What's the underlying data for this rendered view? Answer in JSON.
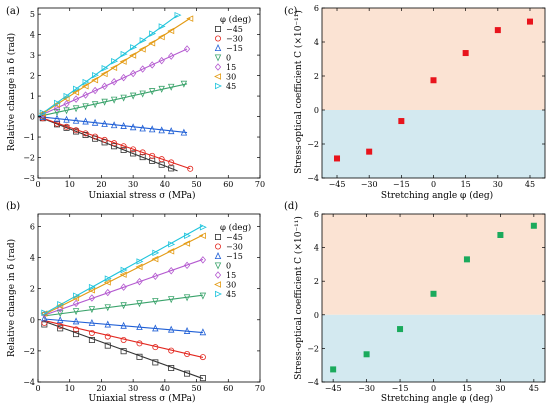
{
  "panels": [
    {
      "id": "a",
      "panel_label": "(a)",
      "xlabel": "Uniaxial stress σ (MPa)",
      "ylabel": "Relative change in δ (rad)"
    },
    {
      "id": "b",
      "panel_label": "(b)",
      "xlabel": "Uniaxial stress σ (MPa)",
      "ylabel": "Relative change in δ (rad)"
    },
    {
      "id": "c",
      "panel_label": "(c)",
      "xlabel": "Stretching angle φ (deg)",
      "ylabel": "Stress-optical coefficient C (×10⁻¹¹)"
    },
    {
      "id": "d",
      "panel_label": "(d)",
      "xlabel": "Stretching angle φ (deg)",
      "ylabel": "Stress-optical coefficient C (×10⁻¹¹)"
    }
  ],
  "legend_title": "φ (deg)",
  "colors": {
    "phi_-45": "#333333",
    "phi_-30": "#e2271f",
    "phi_-15": "#1f5fd6",
    "phi_0": "#3aa36b",
    "phi_15": "#b45ad0",
    "phi_30": "#e39a12",
    "phi_45": "#1ec4dc",
    "positive_region": "#fbe3d3",
    "negative_region": "#d3e9f0",
    "marker_c": "#e8141c",
    "marker_d": "#1aaa5c"
  },
  "chart_data": [
    {
      "panel": "a",
      "type": "scatter",
      "xlabel": "Uniaxial stress σ (MPa)",
      "ylabel": "Relative change in δ (rad)",
      "xlim": [
        0,
        70
      ],
      "ylim": [
        -3,
        5.3
      ],
      "xticks": [
        0,
        10,
        20,
        30,
        40,
        50,
        60,
        70
      ],
      "yticks": [
        -3,
        -2,
        -1,
        0,
        1,
        2,
        3,
        4,
        5
      ],
      "grid": false,
      "legend": "right",
      "legend_title": "φ (deg)",
      "series": [
        {
          "name": "-45",
          "marker": "square",
          "color": "#333333",
          "x": [
            1.5,
            6,
            9,
            12,
            15,
            18,
            21,
            24,
            27,
            30,
            33,
            36,
            39,
            42
          ],
          "y": [
            -0.08,
            -0.38,
            -0.55,
            -0.73,
            -0.9,
            -1.08,
            -1.26,
            -1.45,
            -1.63,
            -1.8,
            -1.98,
            -2.16,
            -2.35,
            -2.53
          ],
          "fit": [
            [
              0,
              0.0
            ],
            [
              44,
              -2.65
            ]
          ]
        },
        {
          "name": "-30",
          "marker": "circle",
          "color": "#e2271f",
          "x": [
            1.5,
            6,
            9,
            12,
            15,
            18,
            21,
            24,
            27,
            30,
            33,
            36,
            39,
            42,
            48
          ],
          "y": [
            -0.08,
            -0.35,
            -0.5,
            -0.67,
            -0.82,
            -0.98,
            -1.14,
            -1.3,
            -1.45,
            -1.6,
            -1.75,
            -1.92,
            -2.08,
            -2.24,
            -2.55
          ],
          "fit": [
            [
              0,
              0.0
            ],
            [
              48,
              -2.55
            ]
          ]
        },
        {
          "name": "-15",
          "marker": "triangle-up",
          "color": "#1f5fd6",
          "x": [
            1.5,
            6,
            9,
            12,
            15,
            18,
            21,
            24,
            27,
            30,
            33,
            36,
            39,
            42,
            46
          ],
          "y": [
            -0.02,
            -0.1,
            -0.15,
            -0.2,
            -0.24,
            -0.3,
            -0.36,
            -0.42,
            -0.46,
            -0.52,
            -0.58,
            -0.62,
            -0.67,
            -0.71,
            -0.78
          ],
          "fit": [
            [
              0,
              0.0
            ],
            [
              47,
              -0.78
            ]
          ]
        },
        {
          "name": "0",
          "marker": "triangle-down",
          "color": "#3aa36b",
          "x": [
            1.5,
            6,
            9,
            12,
            15,
            18,
            21,
            24,
            27,
            30,
            33,
            36,
            39,
            42,
            46
          ],
          "y": [
            0.05,
            0.22,
            0.3,
            0.4,
            0.5,
            0.6,
            0.72,
            0.82,
            0.92,
            1.02,
            1.12,
            1.24,
            1.35,
            1.45,
            1.6
          ],
          "fit": [
            [
              0,
              0.0
            ],
            [
              47,
              1.6
            ]
          ]
        },
        {
          "name": "15",
          "marker": "diamond",
          "color": "#b45ad0",
          "x": [
            1.5,
            6,
            9,
            12,
            15,
            18,
            21,
            24,
            27,
            30,
            33,
            36,
            39,
            42,
            47
          ],
          "y": [
            0.1,
            0.42,
            0.62,
            0.85,
            1.05,
            1.27,
            1.48,
            1.7,
            1.9,
            2.1,
            2.32,
            2.52,
            2.73,
            2.95,
            3.3
          ],
          "fit": [
            [
              0,
              0.0
            ],
            [
              47,
              3.3
            ]
          ]
        },
        {
          "name": "30",
          "marker": "triangle-left",
          "color": "#e39a12",
          "x": [
            1.5,
            6,
            9,
            12,
            15,
            18,
            21,
            24,
            27,
            30,
            33,
            36,
            39,
            42,
            48
          ],
          "y": [
            0.15,
            0.58,
            0.88,
            1.18,
            1.48,
            1.78,
            2.08,
            2.38,
            2.68,
            2.98,
            3.28,
            3.58,
            3.88,
            4.18,
            4.78
          ],
          "fit": [
            [
              0,
              0.0
            ],
            [
              48,
              4.8
            ]
          ]
        },
        {
          "name": "45",
          "marker": "triangle-right",
          "color": "#1ec4dc",
          "x": [
            1.5,
            6,
            9,
            12,
            15,
            18,
            21,
            24,
            27,
            30,
            33,
            36,
            39,
            44
          ],
          "y": [
            0.18,
            0.66,
            1.0,
            1.35,
            1.68,
            2.02,
            2.36,
            2.7,
            3.05,
            3.38,
            3.72,
            4.05,
            4.4,
            4.95
          ],
          "fit": [
            [
              0,
              0.0
            ],
            [
              44,
              4.95
            ]
          ]
        }
      ]
    },
    {
      "panel": "b",
      "type": "scatter",
      "xlabel": "Uniaxial stress σ (MPa)",
      "ylabel": "Relative change in δ (rad)",
      "xlim": [
        0,
        70
      ],
      "ylim": [
        -4,
        6.8
      ],
      "xticks": [
        0,
        10,
        20,
        30,
        40,
        50,
        60,
        70
      ],
      "yticks": [
        -4,
        -2,
        0,
        2,
        4,
        6
      ],
      "grid": false,
      "legend": "right",
      "legend_title": "φ (deg)",
      "series": [
        {
          "name": "-45",
          "marker": "square",
          "color": "#333333",
          "x": [
            2,
            7,
            12,
            17,
            22,
            27,
            32,
            37,
            42,
            47,
            52
          ],
          "y": [
            -0.3,
            -0.55,
            -0.92,
            -1.3,
            -1.66,
            -2.02,
            -2.38,
            -2.74,
            -3.1,
            -3.46,
            -3.75
          ],
          "fit": [
            [
              2,
              -0.1
            ],
            [
              52,
              -3.78
            ]
          ]
        },
        {
          "name": "-30",
          "marker": "circle",
          "color": "#e2271f",
          "x": [
            2,
            7,
            12,
            17,
            22,
            27,
            32,
            37,
            42,
            47,
            52
          ],
          "y": [
            -0.2,
            -0.4,
            -0.62,
            -0.85,
            -1.08,
            -1.3,
            -1.52,
            -1.76,
            -1.98,
            -2.2,
            -2.4
          ],
          "fit": [
            [
              2,
              -0.05
            ],
            [
              52,
              -2.42
            ]
          ]
        },
        {
          "name": "-15",
          "marker": "triangle-up",
          "color": "#1f5fd6",
          "x": [
            2,
            7,
            12,
            17,
            22,
            27,
            32,
            37,
            42,
            47,
            52
          ],
          "y": [
            0.1,
            -0.02,
            -0.1,
            -0.2,
            -0.3,
            -0.38,
            -0.46,
            -0.55,
            -0.63,
            -0.72,
            -0.8
          ],
          "fit": [
            [
              2,
              0.05
            ],
            [
              52,
              -0.82
            ]
          ]
        },
        {
          "name": "0",
          "marker": "triangle-down",
          "color": "#3aa36b",
          "x": [
            2,
            7,
            12,
            17,
            22,
            27,
            32,
            37,
            42,
            47,
            52
          ],
          "y": [
            0.3,
            0.42,
            0.55,
            0.68,
            0.8,
            0.93,
            1.06,
            1.2,
            1.32,
            1.44,
            1.55
          ],
          "fit": [
            [
              2,
              0.25
            ],
            [
              52,
              1.58
            ]
          ]
        },
        {
          "name": "15",
          "marker": "diamond",
          "color": "#b45ad0",
          "x": [
            2,
            7,
            12,
            17,
            22,
            27,
            32,
            37,
            42,
            47,
            52
          ],
          "y": [
            0.35,
            0.7,
            1.05,
            1.4,
            1.75,
            2.1,
            2.45,
            2.8,
            3.15,
            3.5,
            3.85
          ],
          "fit": [
            [
              2,
              0.3
            ],
            [
              52,
              3.88
            ]
          ]
        },
        {
          "name": "30",
          "marker": "triangle-left",
          "color": "#e39a12",
          "x": [
            2,
            7,
            12,
            17,
            22,
            27,
            32,
            37,
            42,
            47,
            52
          ],
          "y": [
            0.4,
            0.9,
            1.4,
            1.9,
            2.4,
            2.9,
            3.4,
            3.9,
            4.4,
            4.9,
            5.4
          ],
          "fit": [
            [
              2,
              0.35
            ],
            [
              52,
              5.45
            ]
          ]
        },
        {
          "name": "45",
          "marker": "triangle-right",
          "color": "#1ec4dc",
          "x": [
            2,
            7,
            12,
            17,
            22,
            27,
            32,
            37,
            42,
            47,
            52
          ],
          "y": [
            0.45,
            1.0,
            1.55,
            2.1,
            2.65,
            3.2,
            3.75,
            4.3,
            4.85,
            5.4,
            5.95
          ],
          "fit": [
            [
              2,
              0.4
            ],
            [
              52,
              6.05
            ]
          ]
        }
      ]
    },
    {
      "panel": "c",
      "type": "scatter",
      "xlabel": "Stretching angle φ (deg)",
      "ylabel": "Stress-optical coefficient C (×10⁻¹¹)",
      "xlim": [
        -52,
        52
      ],
      "ylim": [
        -4,
        6
      ],
      "xticks": [
        -45,
        -30,
        -15,
        0,
        15,
        30,
        45
      ],
      "yticks": [
        -4,
        -2,
        0,
        2,
        4,
        6
      ],
      "grid": false,
      "shaded_regions": [
        {
          "y": [
            0,
            6
          ],
          "color": "#fbe3d3"
        },
        {
          "y": [
            -4,
            0
          ],
          "color": "#d3e9f0"
        }
      ],
      "series": [
        {
          "marker": "square",
          "color": "#e8141c",
          "x": [
            -45,
            -30,
            -15,
            0,
            15,
            30,
            45
          ],
          "y": [
            -2.85,
            -2.45,
            -0.65,
            1.75,
            3.35,
            4.7,
            5.2
          ]
        }
      ]
    },
    {
      "panel": "d",
      "type": "scatter",
      "xlabel": "Stretching angle φ (deg)",
      "ylabel": "Stress-optical coefficient C (×10⁻¹¹)",
      "xlim": [
        -50,
        50
      ],
      "ylim": [
        -4,
        6
      ],
      "xticks": [
        -45,
        -30,
        -15,
        0,
        15,
        30,
        45
      ],
      "yticks": [
        -4,
        -2,
        0,
        2,
        4,
        6
      ],
      "grid": false,
      "shaded_regions": [
        {
          "y": [
            0,
            6
          ],
          "color": "#fbe3d3"
        },
        {
          "y": [
            -4,
            0
          ],
          "color": "#d3e9f0"
        }
      ],
      "series": [
        {
          "marker": "square",
          "color": "#1aaa5c",
          "x": [
            -45,
            -30,
            -15,
            0,
            15,
            30,
            45
          ],
          "y": [
            -3.25,
            -2.35,
            -0.85,
            1.25,
            3.3,
            4.75,
            5.3
          ]
        }
      ]
    }
  ]
}
